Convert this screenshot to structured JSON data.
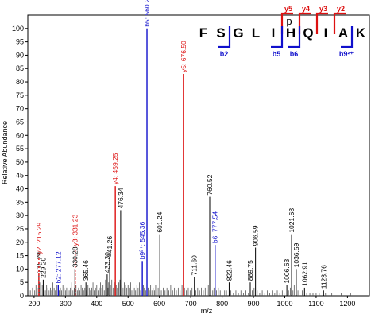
{
  "chart_data": {
    "type": "bar",
    "xlabel": "m/z",
    "ylabel": "Relative Abundance",
    "xlim": [
      180,
      1270
    ],
    "ylim": [
      0,
      105
    ],
    "xticks": [
      200,
      300,
      400,
      500,
      600,
      700,
      800,
      900,
      1000,
      1100,
      1200
    ],
    "yticks": [
      0,
      5,
      10,
      15,
      20,
      25,
      30,
      35,
      40,
      45,
      50,
      55,
      60,
      65,
      70,
      75,
      80,
      85,
      90,
      95,
      100
    ],
    "colors": {
      "b_ion": "#1010cc",
      "y_ion": "#dd1111",
      "other": "#000000",
      "noise": "#555555"
    },
    "annotated_peaks": [
      {
        "mz": 215.29,
        "intensity": 8,
        "label": "215.29",
        "kind": "other"
      },
      {
        "mz": 229.2,
        "intensity": 6,
        "label": "229.20",
        "kind": "other"
      },
      {
        "mz": 215.29,
        "intensity": 15,
        "label": "y2: 215.29",
        "kind": "y",
        "dashed": true
      },
      {
        "mz": 277.12,
        "intensity": 4,
        "label": "b2: 277.12",
        "kind": "b"
      },
      {
        "mz": 330.28,
        "intensity": 10,
        "label": "330.28",
        "kind": "other"
      },
      {
        "mz": 331.23,
        "intensity": 18,
        "label": "y3: 331.23",
        "kind": "y",
        "dashed": true
      },
      {
        "mz": 365.46,
        "intensity": 5,
        "label": "365.46",
        "kind": "other"
      },
      {
        "mz": 433.3,
        "intensity": 8,
        "label": "433.30",
        "kind": "other"
      },
      {
        "mz": 441.26,
        "intensity": 14,
        "label": "441.26",
        "kind": "other"
      },
      {
        "mz": 459.25,
        "intensity": 41,
        "label": "y4: 459.25",
        "kind": "y"
      },
      {
        "mz": 476.34,
        "intensity": 32,
        "label": "476.34",
        "kind": "other"
      },
      {
        "mz": 545.36,
        "intensity": 13,
        "label": "b9²⁺: 545.36",
        "kind": "b"
      },
      {
        "mz": 560.26,
        "intensity": 100,
        "label": "b5: 560.26",
        "kind": "b"
      },
      {
        "mz": 601.24,
        "intensity": 23,
        "label": "601.24",
        "kind": "other"
      },
      {
        "mz": 676.5,
        "intensity": 83,
        "label": "y5: 676.50",
        "kind": "y"
      },
      {
        "mz": 711.6,
        "intensity": 7,
        "label": "711.60",
        "kind": "other"
      },
      {
        "mz": 760.52,
        "intensity": 37,
        "label": "760.52",
        "kind": "other"
      },
      {
        "mz": 777.54,
        "intensity": 19,
        "label": "b6: 777.54",
        "kind": "b"
      },
      {
        "mz": 822.46,
        "intensity": 5,
        "label": "822.46",
        "kind": "other"
      },
      {
        "mz": 889.75,
        "intensity": 5,
        "label": "889.75",
        "kind": "other"
      },
      {
        "mz": 906.59,
        "intensity": 18,
        "label": "906.59",
        "kind": "other"
      },
      {
        "mz": 1006.63,
        "intensity": 4,
        "label": "1006.63",
        "kind": "other"
      },
      {
        "mz": 1021.68,
        "intensity": 23,
        "label": "1021.68",
        "kind": "other"
      },
      {
        "mz": 1036.59,
        "intensity": 10,
        "label": "1036.59",
        "kind": "other"
      },
      {
        "mz": 1062.91,
        "intensity": 3,
        "label": "1062.91",
        "kind": "other"
      },
      {
        "mz": 1123.76,
        "intensity": 2,
        "label": "1123.76",
        "kind": "other"
      }
    ],
    "noise_peaks": [
      [
        188,
        2
      ],
      [
        195,
        3
      ],
      [
        202,
        2
      ],
      [
        206,
        4
      ],
      [
        210,
        3
      ],
      [
        218,
        5
      ],
      [
        222,
        2
      ],
      [
        226,
        4
      ],
      [
        232,
        3
      ],
      [
        236,
        2
      ],
      [
        240,
        4
      ],
      [
        244,
        3
      ],
      [
        248,
        2
      ],
      [
        252,
        3
      ],
      [
        256,
        2
      ],
      [
        260,
        5
      ],
      [
        264,
        3
      ],
      [
        268,
        2
      ],
      [
        272,
        4
      ],
      [
        280,
        2
      ],
      [
        284,
        3
      ],
      [
        288,
        2
      ],
      [
        292,
        4
      ],
      [
        296,
        3
      ],
      [
        300,
        2
      ],
      [
        304,
        3
      ],
      [
        308,
        4
      ],
      [
        312,
        2
      ],
      [
        316,
        3
      ],
      [
        320,
        5
      ],
      [
        324,
        2
      ],
      [
        328,
        3
      ],
      [
        334,
        4
      ],
      [
        338,
        2
      ],
      [
        342,
        3
      ],
      [
        346,
        2
      ],
      [
        350,
        4
      ],
      [
        354,
        3
      ],
      [
        358,
        2
      ],
      [
        362,
        3
      ],
      [
        368,
        2
      ],
      [
        372,
        4
      ],
      [
        376,
        3
      ],
      [
        380,
        2
      ],
      [
        384,
        3
      ],
      [
        388,
        5
      ],
      [
        392,
        2
      ],
      [
        396,
        3
      ],
      [
        400,
        4
      ],
      [
        404,
        2
      ],
      [
        408,
        3
      ],
      [
        412,
        5
      ],
      [
        416,
        3
      ],
      [
        420,
        4
      ],
      [
        424,
        2
      ],
      [
        428,
        6
      ],
      [
        436,
        3
      ],
      [
        438,
        5
      ],
      [
        444,
        4
      ],
      [
        448,
        6
      ],
      [
        452,
        3
      ],
      [
        456,
        5
      ],
      [
        462,
        4
      ],
      [
        466,
        3
      ],
      [
        470,
        5
      ],
      [
        474,
        6
      ],
      [
        480,
        4
      ],
      [
        484,
        3
      ],
      [
        488,
        5
      ],
      [
        492,
        4
      ],
      [
        496,
        3
      ],
      [
        500,
        4
      ],
      [
        504,
        3
      ],
      [
        508,
        5
      ],
      [
        512,
        2
      ],
      [
        516,
        4
      ],
      [
        520,
        3
      ],
      [
        524,
        2
      ],
      [
        528,
        4
      ],
      [
        532,
        3
      ],
      [
        536,
        5
      ],
      [
        540,
        2
      ],
      [
        549,
        4
      ],
      [
        552,
        3
      ],
      [
        556,
        2
      ],
      [
        564,
        3
      ],
      [
        568,
        2
      ],
      [
        572,
        4
      ],
      [
        576,
        2
      ],
      [
        580,
        3
      ],
      [
        584,
        2
      ],
      [
        588,
        4
      ],
      [
        592,
        2
      ],
      [
        596,
        3
      ],
      [
        606,
        2
      ],
      [
        612,
        3
      ],
      [
        618,
        2
      ],
      [
        624,
        3
      ],
      [
        630,
        2
      ],
      [
        636,
        4
      ],
      [
        642,
        2
      ],
      [
        648,
        3
      ],
      [
        654,
        2
      ],
      [
        660,
        3
      ],
      [
        666,
        2
      ],
      [
        672,
        4
      ],
      [
        680,
        3
      ],
      [
        686,
        2
      ],
      [
        692,
        3
      ],
      [
        698,
        2
      ],
      [
        704,
        3
      ],
      [
        716,
        2
      ],
      [
        722,
        3
      ],
      [
        728,
        2
      ],
      [
        734,
        3
      ],
      [
        740,
        2
      ],
      [
        746,
        3
      ],
      [
        752,
        2
      ],
      [
        756,
        4
      ],
      [
        764,
        3
      ],
      [
        770,
        2
      ],
      [
        774,
        3
      ],
      [
        782,
        2
      ],
      [
        788,
        3
      ],
      [
        794,
        2
      ],
      [
        800,
        3
      ],
      [
        808,
        2
      ],
      [
        814,
        2
      ],
      [
        828,
        2
      ],
      [
        836,
        1
      ],
      [
        844,
        2
      ],
      [
        852,
        1
      ],
      [
        860,
        2
      ],
      [
        868,
        1
      ],
      [
        876,
        2
      ],
      [
        884,
        1
      ],
      [
        896,
        2
      ],
      [
        902,
        3
      ],
      [
        912,
        2
      ],
      [
        920,
        1
      ],
      [
        928,
        2
      ],
      [
        936,
        1
      ],
      [
        944,
        2
      ],
      [
        952,
        1
      ],
      [
        960,
        2
      ],
      [
        968,
        1
      ],
      [
        976,
        2
      ],
      [
        984,
        1
      ],
      [
        992,
        2
      ],
      [
        998,
        1
      ],
      [
        1012,
        2
      ],
      [
        1018,
        3
      ],
      [
        1026,
        2
      ],
      [
        1030,
        4
      ],
      [
        1042,
        2
      ],
      [
        1048,
        1
      ],
      [
        1056,
        2
      ],
      [
        1070,
        1
      ],
      [
        1080,
        1
      ],
      [
        1090,
        1
      ],
      [
        1100,
        1
      ],
      [
        1110,
        1
      ],
      [
        1130,
        1
      ],
      [
        1150,
        1
      ],
      [
        1180,
        1
      ],
      [
        1210,
        1
      ]
    ]
  },
  "sequence": {
    "residues": [
      "F",
      "S",
      "G",
      "L",
      "I",
      "H",
      "Q",
      "I",
      "A",
      "K"
    ],
    "modification_label": "p",
    "y_labels": [
      "y5",
      "y4",
      "y3",
      "y2"
    ],
    "b_labels": [
      "b2",
      "b5",
      "b6",
      "b9²⁺"
    ]
  }
}
